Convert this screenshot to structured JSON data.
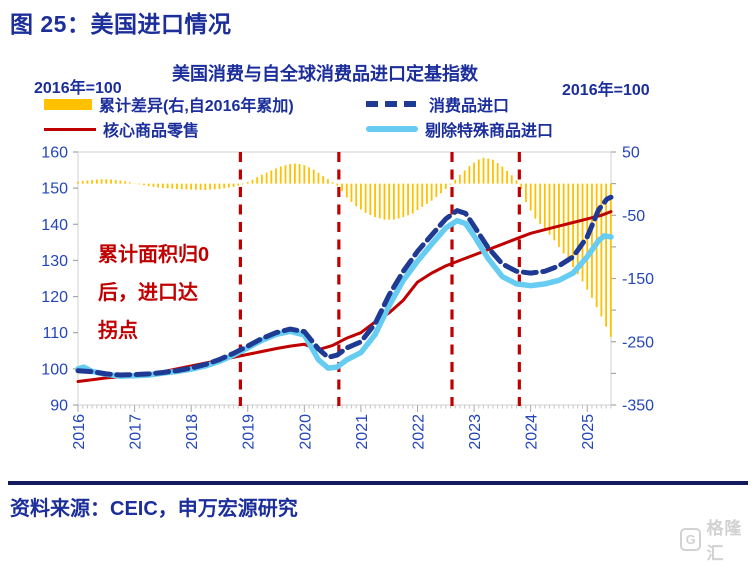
{
  "page": {
    "title": "图 25：美国进口情况",
    "source": "资料来源：CEIC，申万宏源研究",
    "watermark": "格隆汇",
    "watermark_icon": "G"
  },
  "chart": {
    "title": "美国消费与自全球消费品进口定基指数",
    "left_axis_unit": "2016年=100",
    "right_axis_unit": "2016年=100",
    "annotation": {
      "lines": [
        "累计面积归0",
        "后，进口达",
        "拐点"
      ],
      "color": "#C00000"
    },
    "legend": [
      {
        "label": "累计差异(右,自2016年累加)",
        "swatch": "bar",
        "color": "#FFC000"
      },
      {
        "label": "消费品进口",
        "swatch": "dashed-line",
        "color": "#1F3A93"
      },
      {
        "label": "核心商品零售",
        "swatch": "thin-line",
        "color": "#C00000"
      },
      {
        "label": "剔除特殊商品进口",
        "swatch": "thick-line",
        "color": "#66CCF2"
      }
    ],
    "colors": {
      "axis_text": "#2446B8",
      "frame": "#D9D9D9",
      "tick_minor": "#C6C6C6",
      "tick_major": "#A6A6A6",
      "vline": "#C00000"
    }
  },
  "chart_data": {
    "type": "bar+line",
    "title": "美国消费与自全球消费品进口定基指数",
    "x_axis": {
      "min": 2016,
      "max": 2025.42,
      "tick_labels": [
        2016,
        2017,
        2018,
        2019,
        2020,
        2021,
        2022,
        2023,
        2024,
        2025
      ]
    },
    "left_axis": {
      "min": 90,
      "max": 160,
      "tick_labels": [
        160,
        150,
        140,
        130,
        120,
        110,
        100,
        90
      ]
    },
    "right_axis": {
      "min": -350,
      "max": 50,
      "tick_labels": [
        50,
        -50,
        -150,
        -250,
        -350
      ],
      "minor_step": 50
    },
    "grid": false,
    "vlines": {
      "color": "#C00000",
      "style": "dashed",
      "x_values": [
        2018.87,
        2020.61,
        2022.61,
        2023.8
      ]
    },
    "series": [
      {
        "name": "累计差异(右,自2016年累加)",
        "slug": "cumulative-difference-bars",
        "type": "bar",
        "axis": "right",
        "color": "#FFC000",
        "bar_width": 1.8,
        "monthly_interpolated": true,
        "points": [
          [
            2016.0,
            3
          ],
          [
            2016.17,
            5
          ],
          [
            2016.42,
            7
          ],
          [
            2016.58,
            6.5
          ],
          [
            2016.75,
            5
          ],
          [
            2016.92,
            2
          ],
          [
            2017.08,
            -1
          ],
          [
            2017.25,
            -4
          ],
          [
            2017.5,
            -7
          ],
          [
            2017.75,
            -8.5
          ],
          [
            2018.0,
            -9.5
          ],
          [
            2018.25,
            -10
          ],
          [
            2018.5,
            -8.5
          ],
          [
            2018.75,
            -5
          ],
          [
            2018.92,
            -1
          ],
          [
            2019.08,
            6
          ],
          [
            2019.25,
            14
          ],
          [
            2019.42,
            21
          ],
          [
            2019.58,
            27
          ],
          [
            2019.75,
            31
          ],
          [
            2019.87,
            32
          ],
          [
            2020.0,
            29
          ],
          [
            2020.17,
            22
          ],
          [
            2020.33,
            12
          ],
          [
            2020.5,
            2
          ],
          [
            2020.61,
            -5
          ],
          [
            2020.75,
            -22
          ],
          [
            2020.92,
            -36
          ],
          [
            2021.08,
            -46
          ],
          [
            2021.25,
            -53
          ],
          [
            2021.42,
            -57
          ],
          [
            2021.58,
            -57
          ],
          [
            2021.75,
            -53
          ],
          [
            2021.92,
            -47
          ],
          [
            2022.08,
            -37
          ],
          [
            2022.25,
            -27
          ],
          [
            2022.42,
            -15
          ],
          [
            2022.58,
            -2
          ],
          [
            2022.75,
            14
          ],
          [
            2022.92,
            28
          ],
          [
            2023.08,
            38
          ],
          [
            2023.17,
            41
          ],
          [
            2023.33,
            38
          ],
          [
            2023.5,
            27
          ],
          [
            2023.67,
            13
          ],
          [
            2023.8,
            0
          ],
          [
            2023.92,
            -30
          ],
          [
            2024.08,
            -55
          ],
          [
            2024.25,
            -72
          ],
          [
            2024.42,
            -90
          ],
          [
            2024.58,
            -110
          ],
          [
            2024.75,
            -132
          ],
          [
            2024.92,
            -155
          ],
          [
            2025.08,
            -180
          ],
          [
            2025.25,
            -210
          ],
          [
            2025.42,
            -243
          ]
        ]
      },
      {
        "name": "核心商品零售",
        "slug": "core-goods-retail-line",
        "type": "line",
        "axis": "left",
        "color": "#C00000",
        "width": 3,
        "points": [
          [
            2016.0,
            96.5
          ],
          [
            2016.25,
            97.0
          ],
          [
            2016.5,
            97.5
          ],
          [
            2016.75,
            97.8
          ],
          [
            2017.0,
            98.1
          ],
          [
            2017.25,
            98.6
          ],
          [
            2017.5,
            99.2
          ],
          [
            2017.75,
            100.0
          ],
          [
            2018.0,
            100.8
          ],
          [
            2018.25,
            101.6
          ],
          [
            2018.5,
            102.4
          ],
          [
            2018.75,
            103.2
          ],
          [
            2019.0,
            104.0
          ],
          [
            2019.25,
            104.8
          ],
          [
            2019.5,
            105.6
          ],
          [
            2019.75,
            106.3
          ],
          [
            2020.0,
            106.8
          ],
          [
            2020.25,
            105.3
          ],
          [
            2020.5,
            106.5
          ],
          [
            2020.75,
            108.5
          ],
          [
            2021.0,
            110.0
          ],
          [
            2021.25,
            113.0
          ],
          [
            2021.5,
            115.5
          ],
          [
            2021.75,
            119.0
          ],
          [
            2022.0,
            124.0
          ],
          [
            2022.25,
            126.5
          ],
          [
            2022.5,
            128.5
          ],
          [
            2022.75,
            130.0
          ],
          [
            2023.0,
            131.5
          ],
          [
            2023.25,
            133.0
          ],
          [
            2023.5,
            134.5
          ],
          [
            2023.75,
            136.0
          ],
          [
            2024.0,
            137.5
          ],
          [
            2024.25,
            138.5
          ],
          [
            2024.5,
            139.5
          ],
          [
            2024.75,
            140.5
          ],
          [
            2025.0,
            141.5
          ],
          [
            2025.25,
            142.5
          ],
          [
            2025.42,
            143.5
          ]
        ]
      },
      {
        "name": "剔除特殊商品进口",
        "slug": "imports-ex-special-goods-line",
        "type": "line",
        "axis": "left",
        "color": "#66CCF2",
        "width": 5.5,
        "points": [
          [
            2016.0,
            100.0
          ],
          [
            2016.1,
            100.5
          ],
          [
            2016.25,
            99.3
          ],
          [
            2016.5,
            98.5
          ],
          [
            2016.75,
            98.0
          ],
          [
            2017.0,
            98.1
          ],
          [
            2017.25,
            98.3
          ],
          [
            2017.5,
            98.8
          ],
          [
            2017.75,
            99.3
          ],
          [
            2018.0,
            99.9
          ],
          [
            2018.25,
            100.8
          ],
          [
            2018.5,
            102.1
          ],
          [
            2018.75,
            103.8
          ],
          [
            2019.0,
            105.8
          ],
          [
            2019.25,
            107.9
          ],
          [
            2019.5,
            109.5
          ],
          [
            2019.75,
            110.4
          ],
          [
            2020.0,
            109.4
          ],
          [
            2020.25,
            102.5
          ],
          [
            2020.42,
            100.2
          ],
          [
            2020.58,
            100.5
          ],
          [
            2020.75,
            102.5
          ],
          [
            2021.0,
            104.5
          ],
          [
            2021.25,
            109.5
          ],
          [
            2021.5,
            117.5
          ],
          [
            2021.75,
            124.5
          ],
          [
            2022.0,
            129.8
          ],
          [
            2022.25,
            134.5
          ],
          [
            2022.5,
            139.0
          ],
          [
            2022.7,
            141.0
          ],
          [
            2022.85,
            140.2
          ],
          [
            2023.0,
            136.8
          ],
          [
            2023.25,
            130.5
          ],
          [
            2023.5,
            125.5
          ],
          [
            2023.75,
            123.5
          ],
          [
            2024.0,
            123.0
          ],
          [
            2024.25,
            123.5
          ],
          [
            2024.5,
            124.5
          ],
          [
            2024.75,
            126.5
          ],
          [
            2025.0,
            131.0
          ],
          [
            2025.2,
            135.5
          ],
          [
            2025.3,
            136.8
          ],
          [
            2025.42,
            136.5
          ]
        ]
      },
      {
        "name": "消费品进口",
        "slug": "consumer-goods-imports-line",
        "type": "line",
        "axis": "left",
        "color": "#1F3A93",
        "width": 5,
        "dash": [
          13,
          6.5
        ],
        "points": [
          [
            2016.0,
            99.5
          ],
          [
            2016.25,
            99.2
          ],
          [
            2016.5,
            98.6
          ],
          [
            2016.75,
            98.3
          ],
          [
            2017.0,
            98.4
          ],
          [
            2017.25,
            98.6
          ],
          [
            2017.5,
            99.0
          ],
          [
            2017.75,
            99.5
          ],
          [
            2018.0,
            100.2
          ],
          [
            2018.25,
            101.2
          ],
          [
            2018.5,
            102.6
          ],
          [
            2018.75,
            104.3
          ],
          [
            2019.0,
            106.3
          ],
          [
            2019.25,
            108.4
          ],
          [
            2019.5,
            110.0
          ],
          [
            2019.75,
            111.0
          ],
          [
            2020.0,
            110.3
          ],
          [
            2020.25,
            105.5
          ],
          [
            2020.42,
            103.2
          ],
          [
            2020.58,
            103.8
          ],
          [
            2020.75,
            105.8
          ],
          [
            2021.0,
            107.5
          ],
          [
            2021.25,
            112.5
          ],
          [
            2021.5,
            120.5
          ],
          [
            2021.75,
            127.0
          ],
          [
            2022.0,
            132.5
          ],
          [
            2022.25,
            137.0
          ],
          [
            2022.5,
            141.5
          ],
          [
            2022.7,
            143.8
          ],
          [
            2022.85,
            143.0
          ],
          [
            2023.0,
            139.5
          ],
          [
            2023.25,
            133.5
          ],
          [
            2023.5,
            129.0
          ],
          [
            2023.75,
            127.0
          ],
          [
            2024.0,
            126.5
          ],
          [
            2024.25,
            127.0
          ],
          [
            2024.5,
            128.5
          ],
          [
            2024.75,
            131.0
          ],
          [
            2025.0,
            136.5
          ],
          [
            2025.2,
            144.0
          ],
          [
            2025.35,
            147.0
          ],
          [
            2025.42,
            147.5
          ]
        ]
      }
    ]
  }
}
